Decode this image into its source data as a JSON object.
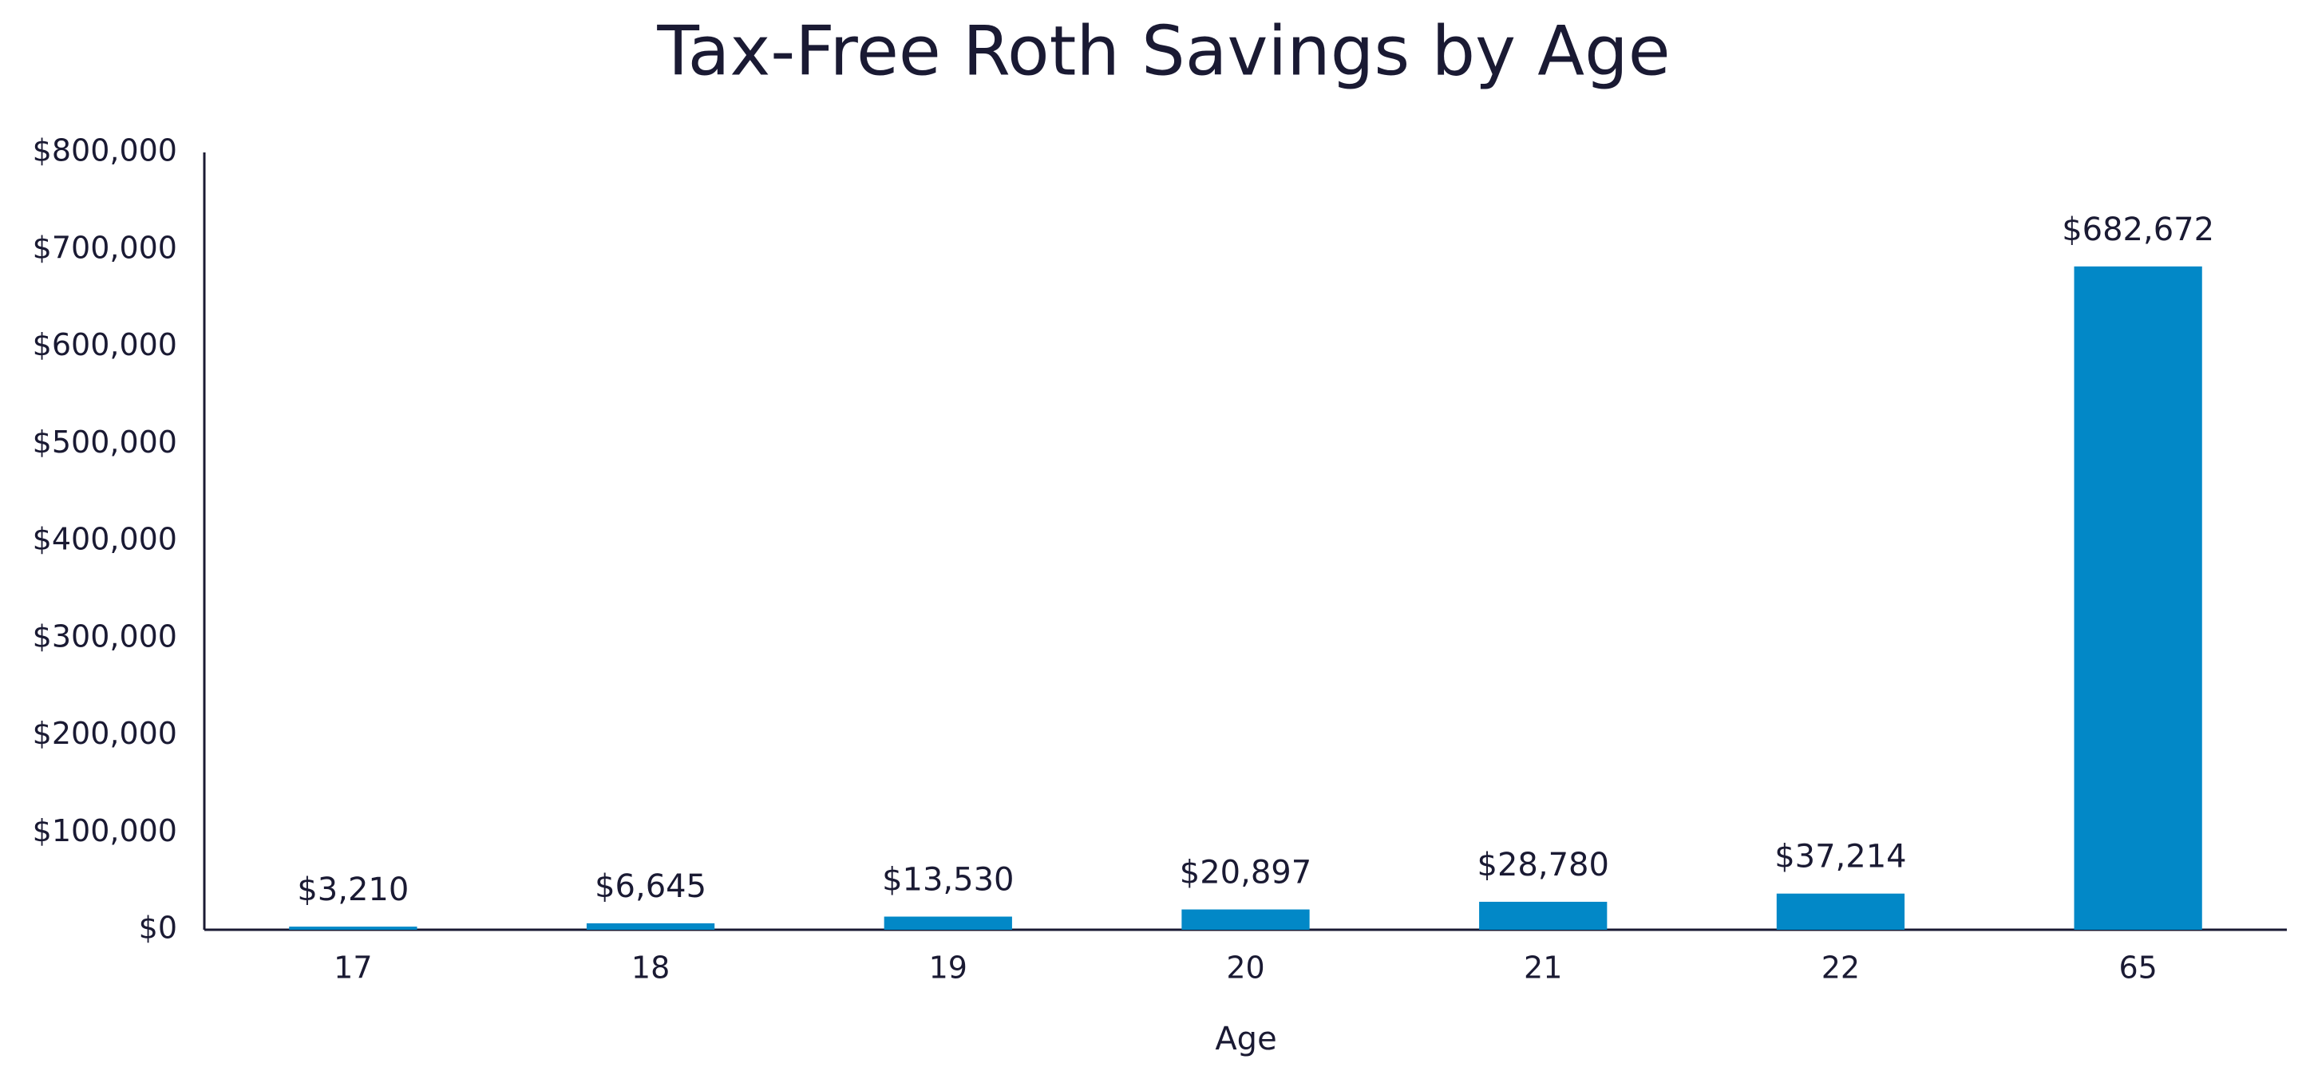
{
  "chart_data": {
    "type": "bar",
    "title": "Tax-Free Roth Savings by Age",
    "x_label": "Age",
    "categories": [
      "17",
      "18",
      "19",
      "20",
      "21",
      "22",
      "65"
    ],
    "values": [
      3210,
      6645,
      13530,
      20897,
      28780,
      37214,
      682672
    ],
    "value_labels": [
      "$3,210",
      "$6,645",
      "$13,530",
      "$20,897",
      "$28,780",
      "$37,214",
      "$682,672"
    ],
    "color": "#0288c7",
    "ylim": [
      0,
      800000
    ],
    "yticks": [
      {
        "value": 0,
        "label": "$0"
      },
      {
        "value": 100000,
        "label": "$100,000"
      },
      {
        "value": 200000,
        "label": "$200,000"
      },
      {
        "value": 300000,
        "label": "$300,000"
      },
      {
        "value": 400000,
        "label": "$400,000"
      },
      {
        "value": 500000,
        "label": "$500,000"
      },
      {
        "value": 600000,
        "label": "$600,000"
      },
      {
        "value": 700000,
        "label": "$700,000"
      },
      {
        "value": 800000,
        "label": "$800,000"
      }
    ],
    "grid": false
  }
}
